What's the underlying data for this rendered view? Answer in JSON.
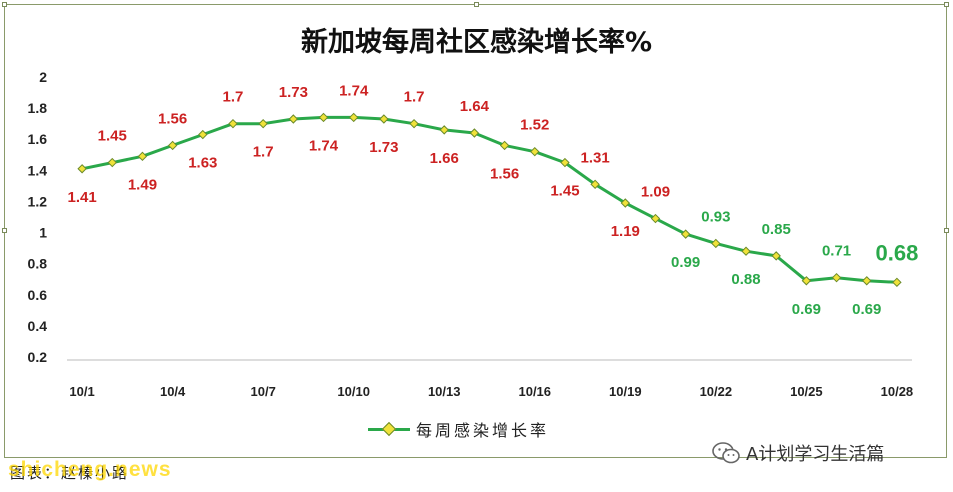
{
  "chart_data": {
    "type": "line",
    "title": "新加坡每周社区感染增长率%",
    "x": [
      "10/1",
      "10/2",
      "10/3",
      "10/4",
      "10/5",
      "10/6",
      "10/7",
      "10/8",
      "10/9",
      "10/10",
      "10/11",
      "10/12",
      "10/13",
      "10/14",
      "10/15",
      "10/16",
      "10/17",
      "10/18",
      "10/19",
      "10/20",
      "10/21",
      "10/22",
      "10/23",
      "10/24",
      "10/25",
      "10/26",
      "10/27",
      "10/28"
    ],
    "x_tick_labels": [
      "10/1",
      "10/4",
      "10/7",
      "10/10",
      "10/13",
      "10/16",
      "10/19",
      "10/22",
      "10/25",
      "10/28"
    ],
    "series": [
      {
        "name": "每周感染增长率",
        "values": [
          1.41,
          1.45,
          1.49,
          1.56,
          1.63,
          1.7,
          1.7,
          1.73,
          1.74,
          1.74,
          1.73,
          1.7,
          1.66,
          1.64,
          1.56,
          1.52,
          1.45,
          1.31,
          1.19,
          1.09,
          0.99,
          0.93,
          0.88,
          0.85,
          0.69,
          0.71,
          0.69,
          0.68
        ],
        "labels": [
          "1.41",
          "1.45",
          "1.49",
          "1.56",
          "1.63",
          "1.7",
          "1.7",
          "1.73",
          "1.74",
          "1.74",
          "1.73",
          "1.7",
          "1.66",
          "1.64",
          "1.56",
          "1.52",
          "1.45",
          "1.31",
          "1.19",
          "1.09",
          "0.99",
          "0.93",
          "0.88",
          "0.85",
          "0.69",
          "0.71",
          "0.69",
          "0.68"
        ]
      }
    ],
    "ylim": [
      0.2,
      2
    ],
    "y_ticks": [
      "0.2",
      "0.4",
      "0.6",
      "0.8",
      "1",
      "1.2",
      "1.4",
      "1.6",
      "1.8",
      "2"
    ],
    "xlabel": "",
    "ylabel": "",
    "grid": false,
    "legend_position": "bottom",
    "colors": {
      "line": "#2aa84a",
      "marker_fill": "#f0e23a",
      "marker_stroke": "#6a8a2a",
      "label_high": "#cc2222",
      "label_low": "#2aa84a"
    },
    "label_color_threshold": 1
  },
  "footer": {
    "credit": "图表：赵榛小路",
    "watermark": "shicheng.news",
    "account": "A计划学习生活篇",
    "account_icon": "wechat-icon"
  }
}
